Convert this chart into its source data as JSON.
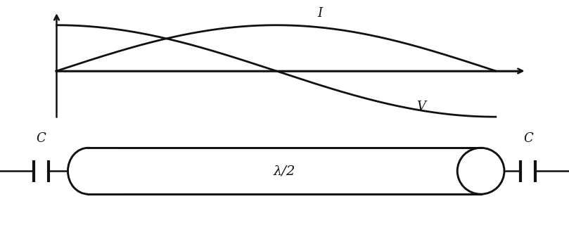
{
  "fig_width": 8.09,
  "fig_height": 3.2,
  "dpi": 100,
  "background_color": "#ffffff",
  "line_color": "#111111",
  "line_width": 1.8,
  "curve_lw": 2.0,
  "label_I": "I",
  "label_V": "V",
  "label_lambda": "λ/2",
  "label_C_left": "C",
  "label_C_right": "C"
}
